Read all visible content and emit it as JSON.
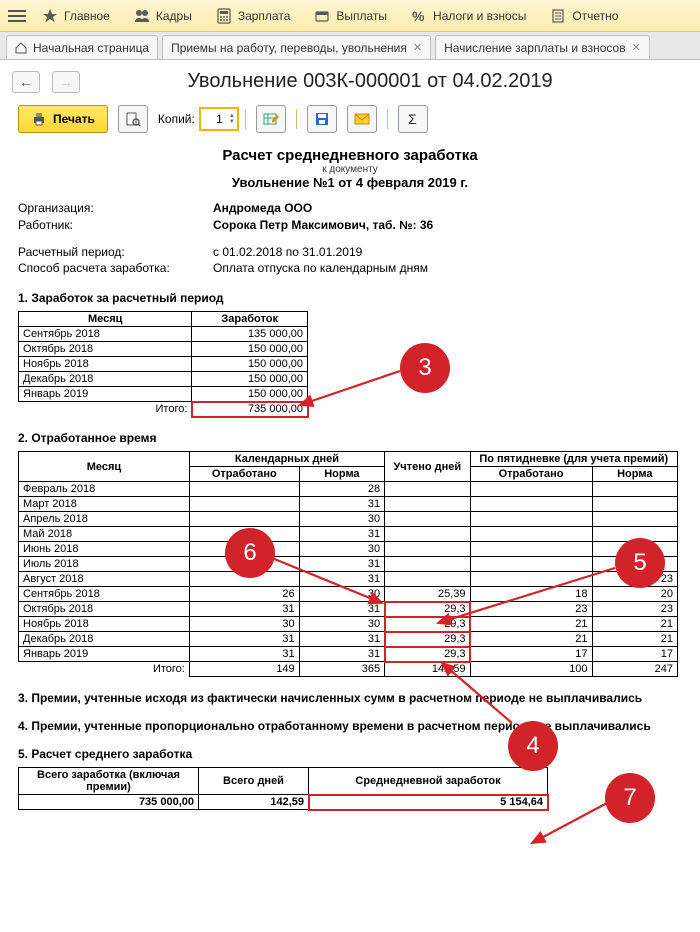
{
  "topmenu": [
    "Главное",
    "Кадры",
    "Зарплата",
    "Выплаты",
    "Налоги и взносы",
    "Отчетно"
  ],
  "tabs": {
    "home": "Начальная страница",
    "t1": "Приемы на работу, переводы, увольнения",
    "t2": "Начисление зарплаты и взносов"
  },
  "title": "Увольнение 003К-000001 от 04.02.2019",
  "toolbar": {
    "print": "Печать",
    "copies_label": "Копий:",
    "copies_value": "1"
  },
  "doc": {
    "title": "Расчет среднедневного заработка",
    "subtitle": "к документу",
    "subtitle2": "Увольнение №1 от 4 февраля 2019 г.",
    "org_label": "Организация:",
    "org_value": "Андромеда ООО",
    "emp_label": "Работник:",
    "emp_value": "Сорока Петр Максимович, таб. №: 36",
    "period_label": "Расчетный период:",
    "period_value": "с 01.02.2018 по 31.01.2019",
    "method_label": "Способ расчета заработка:",
    "method_value": "Оплата отпуска по календарным дням"
  },
  "s1": {
    "title": "1. Заработок за расчетный период",
    "col_month": "Месяц",
    "col_earn": "Заработок",
    "rows": [
      {
        "m": "Сентябрь 2018",
        "v": "135 000,00"
      },
      {
        "m": "Октябрь 2018",
        "v": "150 000,00"
      },
      {
        "m": "Ноябрь 2018",
        "v": "150 000,00"
      },
      {
        "m": "Декабрь 2018",
        "v": "150 000,00"
      },
      {
        "m": "Январь 2019",
        "v": "150 000,00"
      }
    ],
    "total_label": "Итого:",
    "total_value": "735 000,00"
  },
  "s2": {
    "title": "2. Отработанное время",
    "h_month": "Месяц",
    "h_cal": "Календарных дней",
    "h_used": "Учтено дней",
    "h_five": "По пятидневке (для учета премий)",
    "h_worked": "Отработано",
    "h_norm": "Норма",
    "rows": [
      {
        "m": "Февраль 2018",
        "c1": "",
        "c2": "28",
        "u": "",
        "f1": "",
        "f2": ""
      },
      {
        "m": "Март 2018",
        "c1": "",
        "c2": "31",
        "u": "",
        "f1": "",
        "f2": ""
      },
      {
        "m": "Апрель 2018",
        "c1": "",
        "c2": "30",
        "u": "",
        "f1": "",
        "f2": ""
      },
      {
        "m": "Май 2018",
        "c1": "",
        "c2": "31",
        "u": "",
        "f1": "",
        "f2": ""
      },
      {
        "m": "Июнь 2018",
        "c1": "",
        "c2": "30",
        "u": "",
        "f1": "",
        "f2": ""
      },
      {
        "m": "Июль 2018",
        "c1": "",
        "c2": "31",
        "u": "",
        "f1": "",
        "f2": ""
      },
      {
        "m": "Август 2018",
        "c1": "",
        "c2": "31",
        "u": "",
        "f1": "",
        "f2": "23"
      },
      {
        "m": "Сентябрь 2018",
        "c1": "26",
        "c2": "30",
        "u": "25,39",
        "f1": "18",
        "f2": "20"
      },
      {
        "m": "Октябрь 2018",
        "c1": "31",
        "c2": "31",
        "u": "29,3",
        "f1": "23",
        "f2": "23"
      },
      {
        "m": "Ноябрь 2018",
        "c1": "30",
        "c2": "30",
        "u": "29,3",
        "f1": "21",
        "f2": "21"
      },
      {
        "m": "Декабрь 2018",
        "c1": "31",
        "c2": "31",
        "u": "29,3",
        "f1": "21",
        "f2": "21"
      },
      {
        "m": "Январь 2019",
        "c1": "31",
        "c2": "31",
        "u": "29,3",
        "f1": "17",
        "f2": "17"
      }
    ],
    "total_label": "Итого:",
    "t_c1": "149",
    "t_c2": "365",
    "t_u": "142,59",
    "t_f1": "100",
    "t_f2": "247"
  },
  "s3": "3. Премии, учтенные исходя из фактически начисленных сумм в расчетном периоде не выплачивались",
  "s4": "4. Премии, учтенные пропорционально отработанному времени в расчетном периоде не выплачивались",
  "s5": {
    "title": "5. Расчет среднего  заработка",
    "h1": "Всего заработка (включая премии)",
    "h2": "Всего дней",
    "h3": "Среднедневной заработок",
    "v1": "735 000,00",
    "v2": "142,59",
    "v3": "5 154,64"
  },
  "callouts": {
    "c3": "3",
    "c4": "4",
    "c5": "5",
    "c6": "6",
    "c7": "7"
  }
}
